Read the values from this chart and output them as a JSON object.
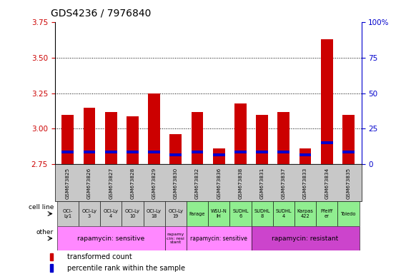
{
  "title": "GDS4236 / 7976840",
  "samples": [
    "GSM673825",
    "GSM673826",
    "GSM673827",
    "GSM673828",
    "GSM673829",
    "GSM673830",
    "GSM673832",
    "GSM673836",
    "GSM673838",
    "GSM673831",
    "GSM673837",
    "GSM673833",
    "GSM673834",
    "GSM673835"
  ],
  "transformed_count": [
    3.1,
    3.15,
    3.12,
    3.09,
    3.25,
    2.96,
    3.12,
    2.86,
    3.18,
    3.1,
    3.12,
    2.86,
    3.63,
    3.1
  ],
  "percentile_bottom": [
    2.825,
    2.825,
    2.825,
    2.825,
    2.825,
    2.805,
    2.825,
    2.805,
    2.825,
    2.825,
    2.825,
    2.805,
    2.89,
    2.825
  ],
  "percentile_height": [
    0.02,
    0.02,
    0.02,
    0.02,
    0.02,
    0.02,
    0.02,
    0.02,
    0.02,
    0.02,
    0.02,
    0.02,
    0.02,
    0.02
  ],
  "cell_line": [
    "OCI-\nLy1",
    "OCI-Ly\n3",
    "OCI-Ly\n4",
    "OCI-Ly\n10",
    "OCI-Ly\n18",
    "OCI-Ly\n19",
    "Farage",
    "WSU-N\nIH",
    "SUDHL\n6",
    "SUDHL\n8",
    "SUDHL\n4",
    "Karpas\n422",
    "Pfeiff\ner",
    "Toledo"
  ],
  "ylim_left": [
    2.75,
    3.75
  ],
  "ylim_right": [
    0,
    100
  ],
  "bar_color": "#cc0000",
  "percentile_color": "#0000cc",
  "title_fontsize": 10,
  "axis_label_color_left": "#cc0000",
  "axis_label_color_right": "#0000cc",
  "gray_bg": "#c8c8c8",
  "green_bg": "#90ee90",
  "pink_bg": "#ff88ff",
  "resistant_bg": "#cc44cc"
}
